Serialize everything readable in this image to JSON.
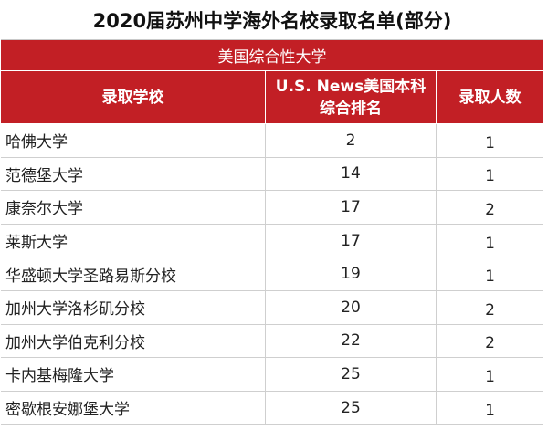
{
  "title": "2020届苏州中学海外名校录取名单(部分)",
  "section": "美国综合性大学",
  "headers": {
    "school": "录取学校",
    "rank": "U.S. News美国本科综合排名",
    "count": "录取人数"
  },
  "rows": [
    {
      "school": "哈佛大学",
      "rank": "2",
      "count": "1"
    },
    {
      "school": "范德堡大学",
      "rank": "14",
      "count": "1"
    },
    {
      "school": "康奈尔大学",
      "rank": "17",
      "count": "2"
    },
    {
      "school": "莱斯大学",
      "rank": "17",
      "count": "1"
    },
    {
      "school": "华盛顿大学圣路易斯分校",
      "rank": "19",
      "count": "1"
    },
    {
      "school": "加州大学洛杉矶分校",
      "rank": "20",
      "count": "2"
    },
    {
      "school": "加州大学伯克利分校",
      "rank": "22",
      "count": "2"
    },
    {
      "school": "卡内基梅隆大学",
      "rank": "25",
      "count": "1"
    },
    {
      "school": "密歇根安娜堡大学",
      "rank": "25",
      "count": "1"
    }
  ],
  "colors": {
    "header_bg": "#c21f25",
    "header_text": "#ffffff"
  }
}
